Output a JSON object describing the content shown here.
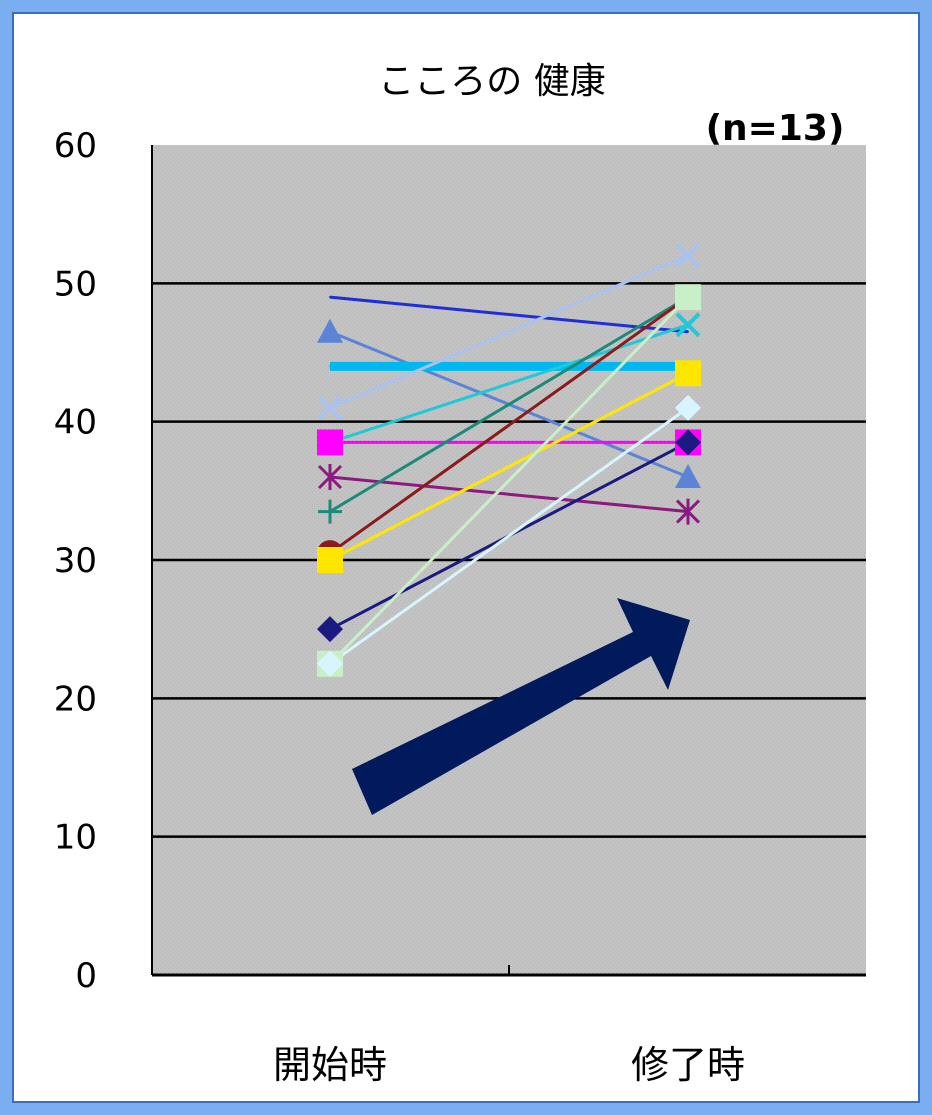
{
  "chart_data": {
    "type": "line",
    "title": "こころの 健康",
    "annotation": "(n=13)",
    "categories": [
      "開始時",
      "修了時"
    ],
    "ylim": [
      0,
      60
    ],
    "yticks": [
      0,
      10,
      20,
      30,
      40,
      50,
      60
    ],
    "grid": true,
    "legend": "none",
    "series": [
      {
        "values": [
          49,
          46.5
        ],
        "color": "#1f2fd8",
        "marker": "none"
      },
      {
        "values": [
          46.5,
          36
        ],
        "color": "#5b83d6",
        "marker": "triangle"
      },
      {
        "values": [
          44,
          44
        ],
        "color": "#00b8f0",
        "marker": "none"
      },
      {
        "values": [
          41,
          52
        ],
        "color": "#a9c2f0",
        "marker": "x"
      },
      {
        "values": [
          38.5,
          47
        ],
        "color": "#20c8d8",
        "marker": "x"
      },
      {
        "values": [
          38.5,
          38.5
        ],
        "color": "#ff00ff",
        "marker": "square"
      },
      {
        "values": [
          36,
          33.5
        ],
        "color": "#8c1a7f",
        "marker": "star"
      },
      {
        "values": [
          33.5,
          49
        ],
        "color": "#1b8a7a",
        "marker": "plus"
      },
      {
        "values": [
          30.5,
          49
        ],
        "color": "#8b1a1a",
        "marker": "circle"
      },
      {
        "values": [
          30,
          43.5
        ],
        "color": "#ffe600",
        "marker": "square"
      },
      {
        "values": [
          25,
          38.5
        ],
        "color": "#1a1a80",
        "marker": "diamond"
      },
      {
        "values": [
          22.5,
          49
        ],
        "color": "#c8f0c8",
        "marker": "square"
      },
      {
        "values": [
          22.5,
          41
        ],
        "color": "#d8f4ff",
        "marker": "diamond"
      }
    ]
  },
  "colors": {
    "border": "#7aaef0",
    "plot_background": "#c0c0c0",
    "arrow": "#001a5c"
  },
  "decorations": {
    "arrow_icon": "upward-trend-arrow"
  }
}
